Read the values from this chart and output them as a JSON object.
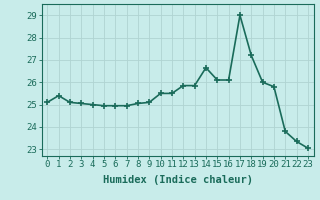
{
  "x": [
    0,
    1,
    2,
    3,
    4,
    5,
    6,
    7,
    8,
    9,
    10,
    11,
    12,
    13,
    14,
    15,
    16,
    17,
    18,
    19,
    20,
    21,
    22,
    23
  ],
  "y": [
    25.1,
    25.4,
    25.1,
    25.05,
    25.0,
    24.95,
    24.95,
    24.95,
    25.05,
    25.1,
    25.5,
    25.5,
    25.85,
    25.85,
    26.65,
    26.1,
    26.1,
    29.0,
    27.2,
    26.0,
    25.8,
    23.8,
    23.35,
    23.05
  ],
  "line_color": "#1a6b5a",
  "marker": "+",
  "marker_size": 4,
  "marker_linewidth": 1.2,
  "bg_color": "#c8ecea",
  "grid_color": "#b0d4d2",
  "xlabel": "Humidex (Indice chaleur)",
  "ylim_min": 22.7,
  "ylim_max": 29.5,
  "xlim_min": -0.5,
  "xlim_max": 23.5,
  "yticks": [
    23,
    24,
    25,
    26,
    27,
    28,
    29
  ],
  "xticks": [
    0,
    1,
    2,
    3,
    4,
    5,
    6,
    7,
    8,
    9,
    10,
    11,
    12,
    13,
    14,
    15,
    16,
    17,
    18,
    19,
    20,
    21,
    22,
    23
  ],
  "tick_color": "#1a6b5a",
  "label_color": "#1a6b5a",
  "tick_fontsize": 6.5,
  "xlabel_fontsize": 7.5,
  "linewidth": 1.2
}
